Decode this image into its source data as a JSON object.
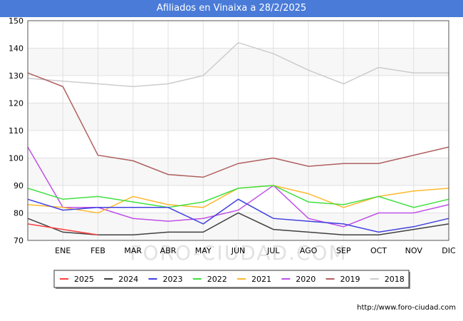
{
  "title": "Afiliados en Vinaixa a 28/2/2025",
  "watermark": "FORO-CIUDAD.COM",
  "footer": "http://www.foro-ciudad.com",
  "chart_data": {
    "type": "line",
    "categories": [
      "",
      "ENE",
      "FEB",
      "MAR",
      "ABR",
      "MAY",
      "JUN",
      "JUL",
      "AGO",
      "SEP",
      "OCT",
      "NOV",
      "DIC"
    ],
    "ylim": [
      70,
      150
    ],
    "yticks": [
      70,
      80,
      90,
      100,
      110,
      120,
      130,
      140,
      150
    ],
    "grid": true,
    "legend_position": "bottom",
    "series": [
      {
        "name": "2025",
        "color": "#ff4040",
        "values": [
          76,
          74,
          72,
          null,
          null,
          null,
          null,
          null,
          null,
          null,
          null,
          null,
          null
        ]
      },
      {
        "name": "2024",
        "color": "#404040",
        "values": [
          78,
          73,
          72,
          72,
          73,
          73,
          80,
          74,
          73,
          72,
          72,
          74,
          76
        ]
      },
      {
        "name": "2023",
        "color": "#4040e0",
        "values": [
          85,
          81,
          82,
          82,
          82,
          76,
          85,
          78,
          77,
          76,
          73,
          75,
          78
        ]
      },
      {
        "name": "2022",
        "color": "#40e040",
        "values": [
          89,
          85,
          86,
          84,
          82,
          84,
          89,
          90,
          84,
          83,
          86,
          82,
          85
        ]
      },
      {
        "name": "2021",
        "color": "#ffb830",
        "values": [
          83,
          82,
          80,
          86,
          83,
          82,
          89,
          90,
          87,
          82,
          86,
          88,
          89
        ]
      },
      {
        "name": "2020",
        "color": "#c050e8",
        "values": [
          104,
          82,
          82,
          78,
          77,
          78,
          81,
          90,
          78,
          75,
          80,
          80,
          83
        ]
      },
      {
        "name": "2019",
        "color": "#b06060",
        "values": [
          131,
          126,
          101,
          99,
          94,
          93,
          98,
          100,
          97,
          98,
          98,
          101,
          104
        ]
      },
      {
        "name": "2018",
        "color": "#cccccc",
        "values": [
          129,
          128,
          127,
          126,
          127,
          130,
          142,
          138,
          132,
          127,
          133,
          131,
          131
        ]
      }
    ]
  }
}
